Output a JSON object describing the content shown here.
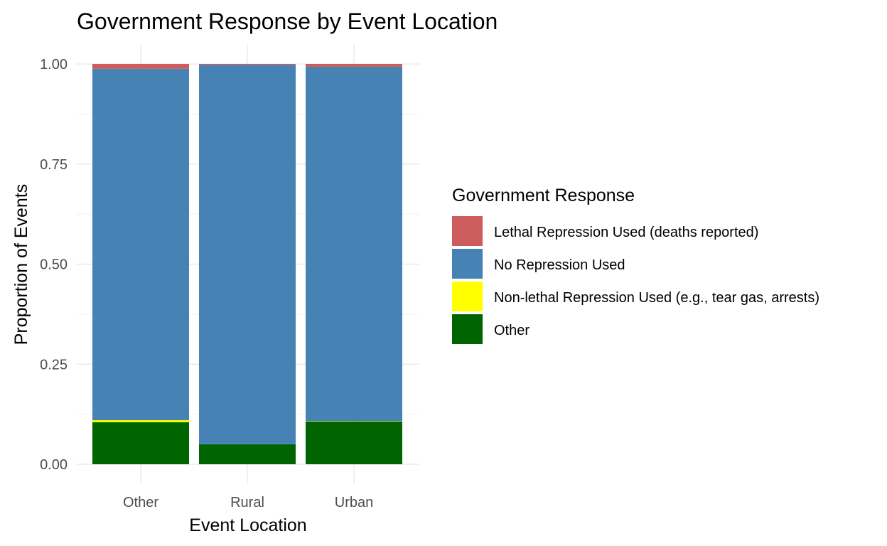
{
  "chart_data": {
    "type": "bar",
    "stacked": true,
    "title": "Government Response by Event Location",
    "xlabel": "Event Location",
    "ylabel": "Proportion of Events",
    "categories": [
      "Other",
      "Rural",
      "Urban"
    ],
    "ylim": [
      0,
      1
    ],
    "y_ticks": [
      "0.00",
      "0.25",
      "0.50",
      "0.75",
      "1.00"
    ],
    "y_tick_values": [
      0,
      0.25,
      0.5,
      0.75,
      1.0
    ],
    "grid": true,
    "legend_title": "Government Response",
    "legend_position": "right",
    "series": [
      {
        "name": "Other",
        "color": "#006400",
        "values": [
          0.105,
          0.05,
          0.107
        ]
      },
      {
        "name": "Non-lethal Repression Used (e.g., tear gas, arrests)",
        "color": "#FFFF00",
        "values": [
          0.005,
          0.0,
          0.001
        ]
      },
      {
        "name": "No Repression Used",
        "color": "#4682B4",
        "values": [
          0.878,
          0.948,
          0.885
        ]
      },
      {
        "name": "Lethal Repression Used (deaths reported)",
        "color": "#CD5C5C",
        "values": [
          0.012,
          0.002,
          0.007
        ]
      }
    ],
    "legend_order": [
      3,
      2,
      1,
      0
    ]
  }
}
